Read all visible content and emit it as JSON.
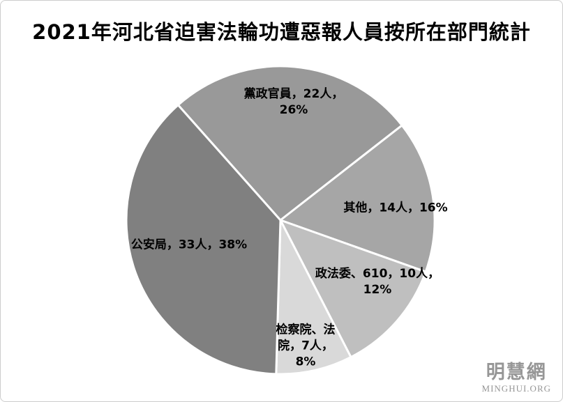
{
  "title": "2021年河北省迫害法輪功遭惡報人員按所在部門統計",
  "watermark": {
    "name_cn": "明慧網",
    "name_en": "MINGHUI.ORG"
  },
  "chart_data": {
    "type": "pie",
    "title": "2021年河北省迫害法輪功遭惡報人員按所在部門統計",
    "categories": [
      "黨政官員",
      "其他",
      "政法委、610",
      "检察院、法院",
      "公安局"
    ],
    "values": [
      22,
      14,
      10,
      7,
      33
    ],
    "unit": "人",
    "percents": [
      26,
      16,
      12,
      8,
      38
    ],
    "colors": [
      "#999999",
      "#a6a6a6",
      "#bfbfbf",
      "#d9d9d9",
      "#808080"
    ],
    "slice_border_color": "#ffffff",
    "start_angle_deg": -41.6,
    "direction": "clockwise",
    "legend": "none",
    "labels": [
      {
        "lines": [
          "黨政官員，22人，",
          "26%"
        ]
      },
      {
        "lines": [
          "其他，14人，16%"
        ]
      },
      {
        "lines": [
          "政法委、610，10人，",
          "12%"
        ]
      },
      {
        "lines": [
          "检察院、法",
          "院，7人，",
          "8%"
        ]
      },
      {
        "lines": [
          "公安局，33人，38%"
        ]
      }
    ]
  }
}
